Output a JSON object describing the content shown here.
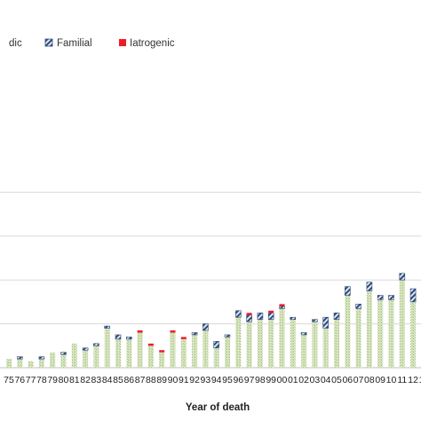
{
  "chart_data": {
    "type": "bar",
    "stacked": true,
    "xlabel": "Year of death",
    "ylabel": "",
    "ylim": [
      0,
      90
    ],
    "grid": true,
    "legend_position": "top-left",
    "categories": [
      "75",
      "76",
      "77",
      "78",
      "79",
      "80",
      "81",
      "82",
      "83",
      "84",
      "85",
      "86",
      "87",
      "88",
      "89",
      "90",
      "91",
      "92",
      "93",
      "94",
      "95",
      "96",
      "97",
      "98",
      "99",
      "00",
      "01",
      "02",
      "03",
      "04",
      "05",
      "06",
      "07",
      "08",
      "09",
      "10",
      "11",
      "12",
      "13"
    ],
    "series": [
      {
        "name": "Sporadic",
        "legend_label": "dic",
        "color": "#c9d9a9",
        "values": [
          4,
          4,
          3,
          4,
          7,
          6,
          11,
          8,
          10,
          18,
          13,
          13,
          16,
          10,
          7,
          16,
          13,
          15,
          17,
          9,
          14,
          23,
          21,
          22,
          22,
          27,
          22,
          15,
          21,
          18,
          22,
          33,
          27,
          35,
          31,
          31,
          40,
          30,
          26
        ]
      },
      {
        "name": "Familial",
        "legend_label": "Familial",
        "color": "#2e4a7a",
        "values": [
          0,
          1,
          0,
          1,
          0,
          1,
          0,
          1,
          1,
          1,
          2,
          1,
          0,
          0,
          0,
          0,
          0,
          1,
          3,
          3,
          1,
          3,
          3,
          3,
          3,
          1,
          1,
          1,
          1,
          5,
          3,
          4,
          2,
          4,
          2,
          2,
          3,
          6,
          3
        ]
      },
      {
        "name": "Iatrogenic",
        "legend_label": "Iatrogenic",
        "color": "#ee1c25",
        "values": [
          0,
          0,
          0,
          0,
          0,
          0,
          0,
          0,
          0,
          0,
          0,
          0,
          1,
          1,
          1,
          1,
          1,
          0,
          0,
          0,
          0,
          0,
          1,
          0,
          1,
          1,
          0,
          0,
          0,
          0,
          0,
          0,
          0,
          0,
          0,
          0,
          0,
          0,
          0
        ]
      }
    ]
  }
}
